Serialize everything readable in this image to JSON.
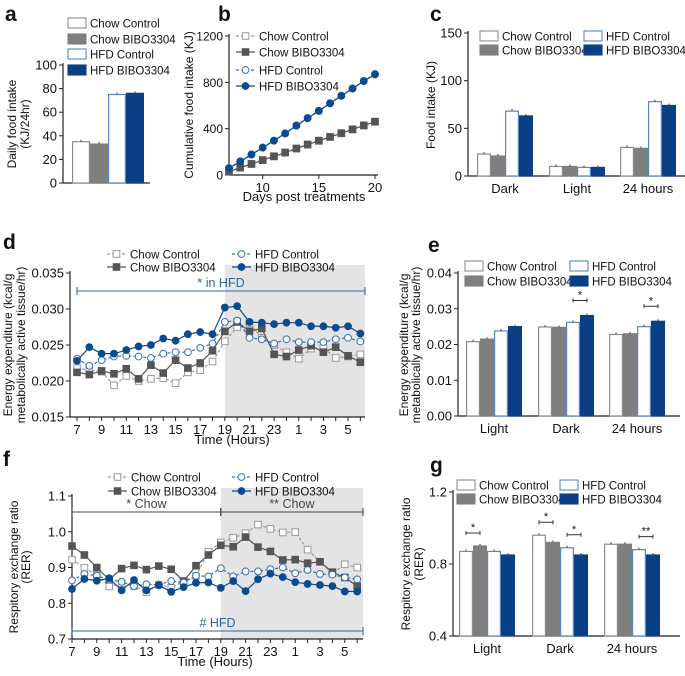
{
  "colors": {
    "chow_control_edge": "#8c8c8c",
    "chow_bibo": "#7f7f7f",
    "hfd_control_edge": "#5a86c2",
    "hfd_bibo": "#0b3f85",
    "shade": "#e4e4e4"
  },
  "groups": [
    "Chow Control",
    "Chow BIBO3304",
    "HFD Control",
    "HFD BIBO3304"
  ],
  "chart_data": [
    {
      "id": "a",
      "panel_label": "a",
      "type": "bar",
      "ylabel": [
        "Daily food intake",
        "(KJ/24hr)"
      ],
      "ylim": [
        0,
        100
      ],
      "yticks": [
        0,
        20,
        40,
        60,
        80,
        100
      ],
      "categories": [
        ""
      ],
      "series": [
        {
          "name": "Chow Control",
          "values": [
            35
          ]
        },
        {
          "name": "Chow BIBO3304",
          "values": [
            33
          ]
        },
        {
          "name": "HFD Control",
          "values": [
            75
          ]
        },
        {
          "name": "HFD BIBO3304",
          "values": [
            76
          ]
        }
      ]
    },
    {
      "id": "b",
      "panel_label": "b",
      "type": "line",
      "xlabel": "Days post treatments",
      "ylabel": [
        "Cumulative food intake (KJ)"
      ],
      "xlim": [
        7,
        20
      ],
      "xticks": [
        10,
        15,
        20
      ],
      "ylim": [
        0,
        1200
      ],
      "yticks": [
        0,
        400,
        800,
        1200
      ],
      "x": [
        7,
        8,
        9,
        10,
        11,
        12,
        13,
        14,
        15,
        16,
        17,
        18,
        19,
        20
      ],
      "series": [
        {
          "name": "Chow Control",
          "values": [
            32,
            65,
            97,
            130,
            163,
            196,
            230,
            265,
            298,
            330,
            363,
            396,
            430,
            462
          ]
        },
        {
          "name": "Chow BIBO3304",
          "values": [
            30,
            63,
            95,
            128,
            160,
            193,
            228,
            262,
            295,
            328,
            360,
            393,
            427,
            460
          ]
        },
        {
          "name": "HFD Control",
          "values": [
            60,
            118,
            178,
            238,
            298,
            360,
            428,
            492,
            555,
            620,
            685,
            748,
            812,
            872
          ]
        },
        {
          "name": "HFD BIBO3304",
          "values": [
            58,
            116,
            176,
            236,
            296,
            358,
            425,
            490,
            553,
            618,
            683,
            746,
            810,
            868
          ]
        }
      ]
    },
    {
      "id": "c",
      "panel_label": "c",
      "type": "bar",
      "ylabel": [
        "Food intake (KJ)"
      ],
      "ylim": [
        0,
        150
      ],
      "yticks": [
        0,
        50,
        100,
        150
      ],
      "categories": [
        "Dark",
        "Light",
        "24 hours"
      ],
      "series": [
        {
          "name": "Chow Control",
          "values": [
            23,
            10,
            30
          ]
        },
        {
          "name": "Chow BIBO3304",
          "values": [
            21,
            10,
            29
          ]
        },
        {
          "name": "HFD Control",
          "values": [
            68,
            9,
            78
          ]
        },
        {
          "name": "HFD BIBO3304",
          "values": [
            63,
            9,
            74
          ]
        }
      ]
    },
    {
      "id": "d",
      "panel_label": "d",
      "type": "line",
      "xlabel": "Time (Hours)",
      "ylabel": [
        "Energy expenditure (kcal/g",
        "metabolically active tissue/hr)"
      ],
      "ylim": [
        0.015,
        0.035
      ],
      "yticks": [
        "0.015",
        "0.020",
        "0.025",
        "0.030",
        "0.035"
      ],
      "x": [
        7,
        8,
        9,
        10,
        11,
        12,
        13,
        14,
        15,
        16,
        17,
        18,
        19,
        20,
        21,
        22,
        23,
        24,
        1,
        2,
        3,
        4,
        5,
        6
      ],
      "xticks": [
        7,
        9,
        11,
        13,
        15,
        17,
        19,
        21,
        23,
        1,
        3,
        5
      ],
      "dark_phase": [
        19,
        6
      ],
      "annotations": [
        {
          "text": "* in HFD",
          "color": "#2f64a8",
          "from": 7,
          "to": 6
        }
      ],
      "series": [
        {
          "name": "Chow Control",
          "values": [
            0.0218,
            0.0215,
            0.0213,
            0.0194,
            0.0207,
            0.02,
            0.0203,
            0.0204,
            0.0197,
            0.0212,
            0.0215,
            0.0227,
            0.0255,
            0.0275,
            0.028,
            0.026,
            0.025,
            0.024,
            0.0231,
            0.0245,
            0.0246,
            0.0232,
            0.0234,
            0.0237
          ]
        },
        {
          "name": "Chow BIBO3304",
          "values": [
            0.0212,
            0.0209,
            0.0214,
            0.021,
            0.0217,
            0.0203,
            0.0222,
            0.0211,
            0.0229,
            0.0218,
            0.0225,
            0.0242,
            0.0269,
            0.0282,
            0.0269,
            0.0273,
            0.0237,
            0.0234,
            0.0243,
            0.0249,
            0.024,
            0.0247,
            0.0235,
            0.0226
          ]
        },
        {
          "name": "HFD Control",
          "values": [
            0.0231,
            0.0221,
            0.0229,
            0.0234,
            0.0235,
            0.0234,
            0.0232,
            0.0238,
            0.024,
            0.024,
            0.0246,
            0.0252,
            0.0282,
            0.0284,
            0.026,
            0.0258,
            0.0252,
            0.0258,
            0.0254,
            0.0254,
            0.0254,
            0.0258,
            0.026,
            0.0255
          ]
        },
        {
          "name": "HFD BIBO3304",
          "values": [
            0.0228,
            0.0247,
            0.0238,
            0.0238,
            0.0243,
            0.0248,
            0.025,
            0.0259,
            0.0256,
            0.0265,
            0.0268,
            0.0265,
            0.0302,
            0.0304,
            0.0282,
            0.0281,
            0.0279,
            0.0281,
            0.0281,
            0.0276,
            0.0276,
            0.0274,
            0.0276,
            0.0266
          ]
        }
      ]
    },
    {
      "id": "e",
      "panel_label": "e",
      "type": "bar",
      "ylabel": [
        "Energy expenditure (kcal/g",
        "metabolically active tissue/hr)"
      ],
      "ylim": [
        0,
        0.04
      ],
      "yticks": [
        "0.00",
        "0.01",
        "0.02",
        "0.03",
        "0.04"
      ],
      "categories": [
        "Light",
        "Dark",
        "24 hours"
      ],
      "significance": [
        {
          "category": "Dark",
          "between": [
            2,
            3
          ],
          "label": "*"
        },
        {
          "category": "24 hours",
          "between": [
            2,
            3
          ],
          "label": "*"
        }
      ],
      "series": [
        {
          "name": "Chow Control",
          "values": [
            0.0208,
            0.0249,
            0.0228
          ]
        },
        {
          "name": "Chow BIBO3304",
          "values": [
            0.0215,
            0.0248,
            0.023
          ]
        },
        {
          "name": "HFD Control",
          "values": [
            0.0238,
            0.0262,
            0.025
          ]
        },
        {
          "name": "HFD BIBO3304",
          "values": [
            0.025,
            0.0281,
            0.0265
          ]
        }
      ]
    },
    {
      "id": "f",
      "panel_label": "f",
      "type": "line",
      "xlabel": "Time (Hours)",
      "ylabel": [
        "Respitory exchange ratio",
        "(RER)"
      ],
      "ylim": [
        0.7,
        1.1
      ],
      "yticks": [
        "0.7",
        "0.8",
        "0.9",
        "1.0",
        "1.1"
      ],
      "x": [
        7,
        8,
        9,
        10,
        11,
        12,
        13,
        14,
        15,
        16,
        17,
        18,
        19,
        20,
        21,
        22,
        23,
        24,
        1,
        2,
        3,
        4,
        5,
        6
      ],
      "xticks": [
        7,
        9,
        11,
        13,
        15,
        17,
        19,
        21,
        23,
        1,
        3,
        5
      ],
      "dark_phase": [
        19,
        6
      ],
      "annotations": [
        {
          "text": "* Chow",
          "color": "#444444",
          "from": 7,
          "to": 19
        },
        {
          "text": "** Chow",
          "color": "#444444",
          "from": 19,
          "to": 6
        },
        {
          "text": "# HFD",
          "color": "#2f64a8",
          "from": 7,
          "to": 6,
          "position": "bottom"
        }
      ],
      "series": [
        {
          "name": "Chow Control",
          "values": [
            0.922,
            0.899,
            0.878,
            0.847,
            0.856,
            0.848,
            0.831,
            0.852,
            0.843,
            0.862,
            0.876,
            0.944,
            0.97,
            0.983,
            0.996,
            1.02,
            1.008,
            0.998,
            0.999,
            0.95,
            0.916,
            0.883,
            0.909,
            0.9
          ]
        },
        {
          "name": "Chow BIBO3304",
          "values": [
            0.96,
            0.935,
            0.9,
            0.866,
            0.897,
            0.906,
            0.894,
            0.904,
            0.895,
            0.862,
            0.905,
            0.935,
            0.962,
            0.958,
            0.985,
            0.957,
            0.945,
            0.921,
            0.922,
            0.912,
            0.916,
            0.887,
            0.872,
            0.848
          ]
        },
        {
          "name": "HFD Control",
          "values": [
            0.864,
            0.882,
            0.877,
            0.866,
            0.86,
            0.848,
            0.853,
            0.852,
            0.862,
            0.858,
            0.877,
            0.875,
            0.898,
            0.875,
            0.889,
            0.889,
            0.895,
            0.9,
            0.884,
            0.893,
            0.882,
            0.88,
            0.872,
            0.867
          ]
        },
        {
          "name": "HFD BIBO3304",
          "values": [
            0.84,
            0.868,
            0.863,
            0.87,
            0.836,
            0.865,
            0.836,
            0.85,
            0.832,
            0.845,
            0.857,
            0.858,
            0.843,
            0.862,
            0.834,
            0.867,
            0.883,
            0.873,
            0.859,
            0.854,
            0.851,
            0.848,
            0.833,
            0.833
          ]
        }
      ]
    },
    {
      "id": "g",
      "panel_label": "g",
      "type": "bar",
      "ylabel": [
        "Respitory exchange ratio",
        "(RER)"
      ],
      "ylim": [
        0.4,
        1.2
      ],
      "yticks": [
        "0.4",
        "0.8",
        "1.2"
      ],
      "categories": [
        "Light",
        "Dark",
        "24 hours"
      ],
      "significance": [
        {
          "category": "Light",
          "between": [
            0,
            1
          ],
          "label": "*"
        },
        {
          "category": "Dark",
          "between": [
            0,
            1
          ],
          "label": "*"
        },
        {
          "category": "Dark",
          "between": [
            2,
            3
          ],
          "label": "*"
        },
        {
          "category": "24 hours",
          "between": [
            2,
            3
          ],
          "label": "**"
        }
      ],
      "series": [
        {
          "name": "Chow Control",
          "values": [
            0.87,
            0.96,
            0.91
          ]
        },
        {
          "name": "Chow BIBO3304",
          "values": [
            0.9,
            0.92,
            0.91
          ]
        },
        {
          "name": "HFD Control",
          "values": [
            0.87,
            0.89,
            0.88
          ]
        },
        {
          "name": "HFD BIBO3304",
          "values": [
            0.85,
            0.85,
            0.85
          ]
        }
      ]
    }
  ]
}
